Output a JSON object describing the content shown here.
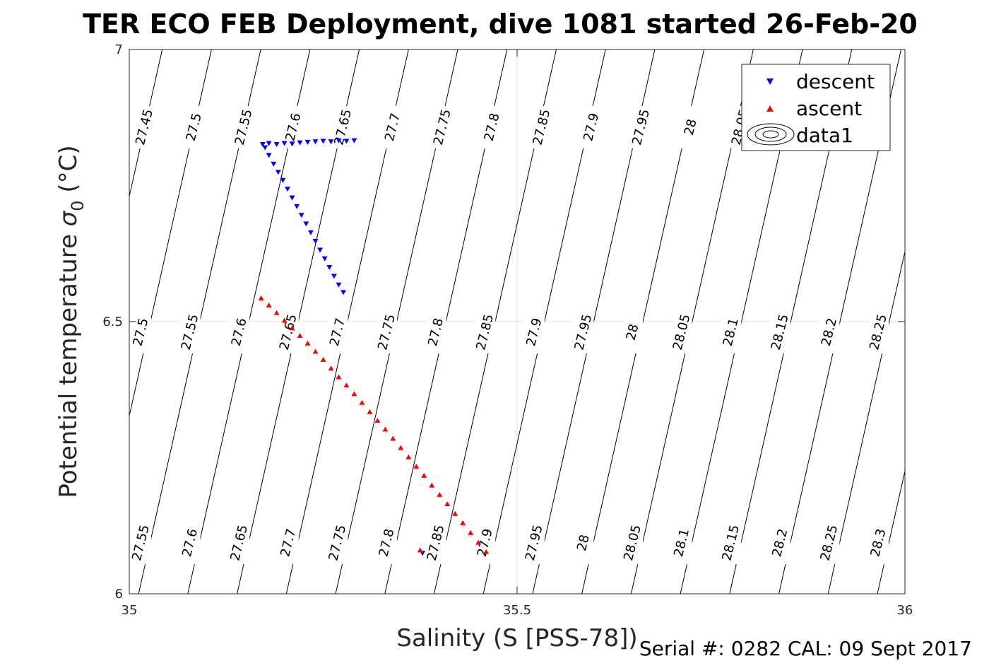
{
  "chart_data": {
    "type": "scatter",
    "title": "TER ECO FEB Deployment, dive 1081 started 26-Feb-20",
    "xlabel": "Salinity (S [PSS-78])",
    "ylabel_main": "Potential temperature ",
    "ylabel_symbol": "σ",
    "ylabel_sub": "0",
    "ylabel_unit": " (°C)",
    "xlim": [
      35,
      36
    ],
    "ylim": [
      6,
      7
    ],
    "xticks": [
      "35",
      "35.5",
      "36"
    ],
    "yticks": [
      "6",
      "6.5",
      "7"
    ],
    "grid": true,
    "legend_position": "top-right",
    "legend": [
      "descent",
      "ascent",
      "data1"
    ],
    "series": [
      {
        "name": "descent",
        "marker": "triangle-down",
        "color": "#0000ff",
        "points": [
          [
            35.172,
            6.826
          ],
          [
            35.18,
            6.828
          ],
          [
            35.19,
            6.826
          ],
          [
            35.2,
            6.828
          ],
          [
            35.21,
            6.827
          ],
          [
            35.22,
            6.829
          ],
          [
            35.23,
            6.83
          ],
          [
            35.24,
            6.831
          ],
          [
            35.25,
            6.832
          ],
          [
            35.26,
            6.831
          ],
          [
            35.27,
            6.833
          ],
          [
            35.28,
            6.832
          ],
          [
            35.29,
            6.833
          ],
          [
            35.175,
            6.82
          ],
          [
            35.18,
            6.806
          ],
          [
            35.186,
            6.79
          ],
          [
            35.192,
            6.775
          ],
          [
            35.198,
            6.76
          ],
          [
            35.204,
            6.744
          ],
          [
            35.21,
            6.728
          ],
          [
            35.216,
            6.712
          ],
          [
            35.222,
            6.696
          ],
          [
            35.228,
            6.68
          ],
          [
            35.234,
            6.664
          ],
          [
            35.24,
            6.648
          ],
          [
            35.246,
            6.632
          ],
          [
            35.252,
            6.616
          ],
          [
            35.258,
            6.6
          ],
          [
            35.264,
            6.584
          ],
          [
            35.27,
            6.568
          ],
          [
            35.276,
            6.554
          ],
          [
            35.378,
            6.075
          ]
        ]
      },
      {
        "name": "ascent",
        "marker": "triangle-up",
        "color": "#ff0000",
        "points": [
          [
            35.17,
            6.543
          ],
          [
            35.18,
            6.53
          ],
          [
            35.19,
            6.516
          ],
          [
            35.2,
            6.502
          ],
          [
            35.21,
            6.488
          ],
          [
            35.22,
            6.474
          ],
          [
            35.23,
            6.46
          ],
          [
            35.24,
            6.445
          ],
          [
            35.25,
            6.43
          ],
          [
            35.26,
            6.414
          ],
          [
            35.27,
            6.398
          ],
          [
            35.28,
            6.383
          ],
          [
            35.29,
            6.367
          ],
          [
            35.3,
            6.351
          ],
          [
            35.31,
            6.334
          ],
          [
            35.32,
            6.318
          ],
          [
            35.33,
            6.302
          ],
          [
            35.34,
            6.285
          ],
          [
            35.35,
            6.268
          ],
          [
            35.36,
            6.251
          ],
          [
            35.37,
            6.234
          ],
          [
            35.38,
            6.217
          ],
          [
            35.39,
            6.199
          ],
          [
            35.4,
            6.182
          ],
          [
            35.41,
            6.165
          ],
          [
            35.42,
            6.147
          ],
          [
            35.43,
            6.13
          ],
          [
            35.44,
            6.112
          ],
          [
            35.45,
            6.094
          ],
          [
            35.46,
            6.077
          ],
          [
            35.375,
            6.08
          ]
        ]
      }
    ],
    "contours": {
      "name": "data1",
      "levels": [
        "27.45",
        "27.5",
        "27.55",
        "27.6",
        "27.65",
        "27.7",
        "27.75",
        "27.8",
        "27.85",
        "27.9",
        "27.95",
        "28",
        "28.05",
        "28.1",
        "28.15",
        "28.2",
        "28.25",
        "28.3"
      ],
      "label_rows": [
        {
          "row": "upper",
          "labels": [
            "27.45",
            "27.5",
            "27.55",
            "27.6",
            "27.65",
            "27.7",
            "27.75",
            "27.8",
            "27.85",
            "27.9",
            "27.95",
            "28",
            "28.05"
          ]
        },
        {
          "row": "middle",
          "labels": [
            "27.5",
            "27.55",
            "27.6",
            "27.65",
            "27.7",
            "27.75",
            "27.8",
            "27.85",
            "27.9",
            "27.95",
            "28",
            "28.05",
            "28.1",
            "28.15",
            "28.2",
            "28.25"
          ]
        },
        {
          "row": "lower",
          "labels": [
            "27.55",
            "27.6",
            "27.65",
            "27.7",
            "27.75",
            "27.8",
            "27.85",
            "27.9",
            "27.95",
            "28",
            "28.05",
            "28.1",
            "28.15",
            "28.2",
            "28.25",
            "28.3"
          ]
        }
      ]
    }
  },
  "footer": "Serial #: 0282  CAL: 09 Sept 2017"
}
